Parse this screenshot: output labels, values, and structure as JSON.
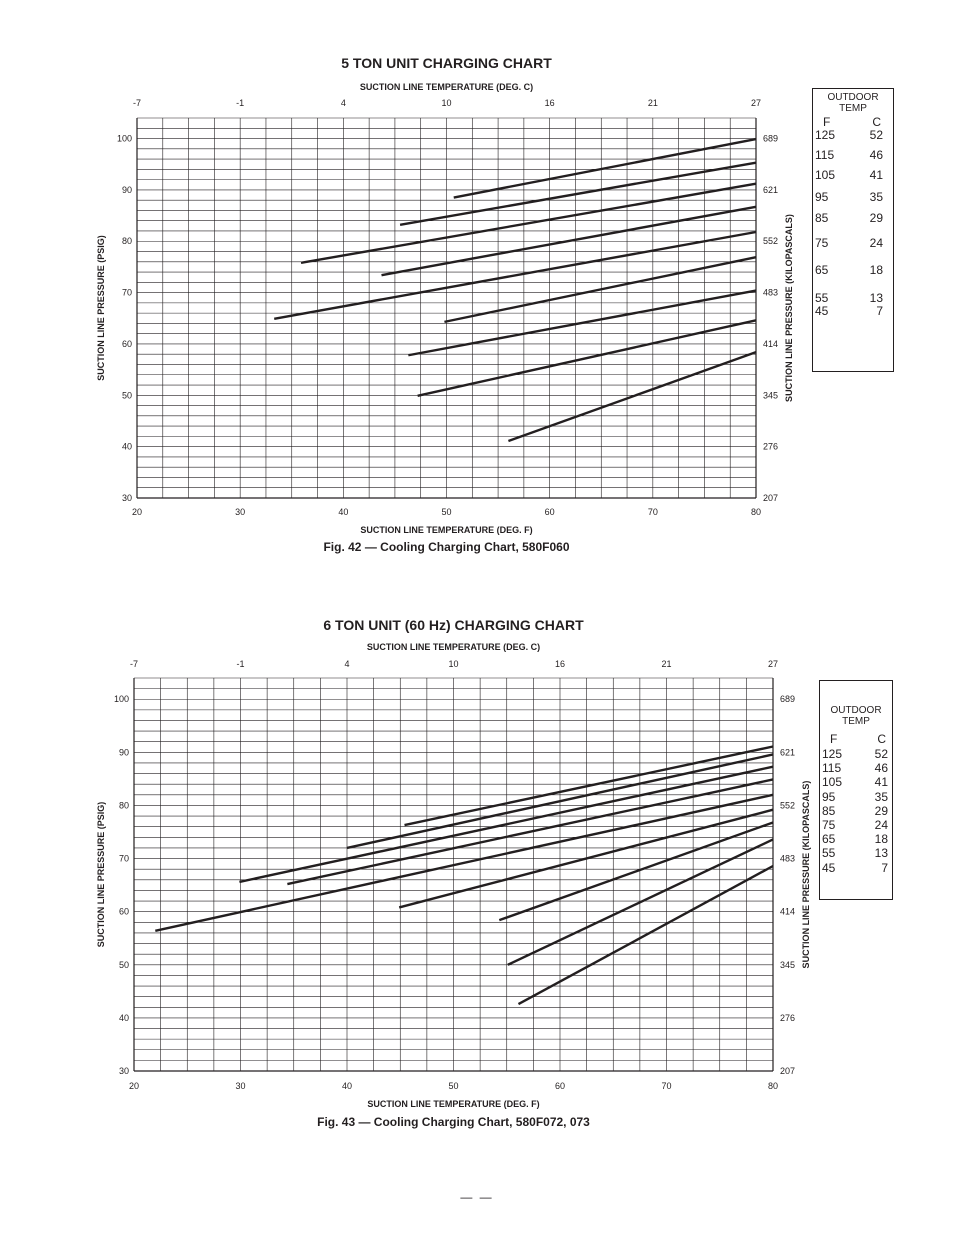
{
  "chart_data": [
    {
      "type": "line",
      "title": "5 TON UNIT CHARGING CHART",
      "caption": "Fig. 42 — Cooling Charging Chart, 580F060",
      "xlabel": "SUCTION LINE TEMPERATURE (DEG. F)",
      "x2label": "SUCTION LINE TEMPERATURE (DEG. C)",
      "ylabel": "SUCTION LINE PRESSURE (PSIG)",
      "y2label": "SUCTION LINE PRESSURE (KILOPASCALS)",
      "xlim": [
        20,
        80
      ],
      "ylim": [
        30,
        104
      ],
      "x_ticks": [
        20,
        30,
        40,
        50,
        60,
        70,
        80
      ],
      "x2_ticks": [
        {
          "label": "-7",
          "x": 20
        },
        {
          "label": "-1",
          "x": 30
        },
        {
          "label": "4",
          "x": 40
        },
        {
          "label": "10",
          "x": 50
        },
        {
          "label": "16",
          "x": 60
        },
        {
          "label": "21",
          "x": 70
        },
        {
          "label": "27",
          "x": 80
        }
      ],
      "y_ticks": [
        30,
        40,
        50,
        60,
        70,
        80,
        90,
        100
      ],
      "y2_ticks": [
        {
          "label": "207",
          "y": 30
        },
        {
          "label": "276",
          "y": 40
        },
        {
          "label": "345",
          "y": 50
        },
        {
          "label": "414",
          "y": 60
        },
        {
          "label": "483",
          "y": 70
        },
        {
          "label": "552",
          "y": 80
        },
        {
          "label": "621",
          "y": 90
        },
        {
          "label": "689",
          "y": 100
        }
      ],
      "grid": true,
      "legend": {
        "title_line1": "OUTDOOR",
        "title_line2": "TEMP",
        "col_f": "F",
        "col_c": "C",
        "rows": [
          {
            "f": "125",
            "c": "52",
            "y": 99.9
          },
          {
            "f": "115",
            "c": "46",
            "y": 95.3
          },
          {
            "f": "105",
            "c": "41",
            "y": 91.2
          },
          {
            "f": "95",
            "c": "35",
            "y": 86.7
          },
          {
            "f": "85",
            "c": "29",
            "y": 81.8
          },
          {
            "f": "75",
            "c": "24",
            "y": 76.9
          },
          {
            "f": "65",
            "c": "18",
            "y": 70.4
          },
          {
            "f": "55",
            "c": "13",
            "y": 64.6
          },
          {
            "f": "45",
            "c": "7",
            "y": 58.4
          }
        ]
      },
      "series": [
        {
          "name": "125",
          "x": [
            50.7,
            80
          ],
          "y": [
            88.5,
            99.9
          ]
        },
        {
          "name": "115",
          "x": [
            45.5,
            80
          ],
          "y": [
            83.2,
            95.3
          ]
        },
        {
          "name": "105",
          "x": [
            35.9,
            80
          ],
          "y": [
            75.8,
            91.2
          ]
        },
        {
          "name": "95",
          "x": [
            43.7,
            80
          ],
          "y": [
            73.4,
            86.7
          ]
        },
        {
          "name": "85",
          "x": [
            33.3,
            80
          ],
          "y": [
            64.9,
            81.8
          ]
        },
        {
          "name": "75",
          "x": [
            49.8,
            80
          ],
          "y": [
            64.3,
            76.9
          ]
        },
        {
          "name": "65",
          "x": [
            46.3,
            80
          ],
          "y": [
            57.8,
            70.4
          ]
        },
        {
          "name": "55",
          "x": [
            47.2,
            80
          ],
          "y": [
            49.9,
            64.6
          ]
        },
        {
          "name": "45",
          "x": [
            56.0,
            80
          ],
          "y": [
            41.1,
            58.4
          ]
        }
      ]
    },
    {
      "type": "line",
      "title": "6 TON UNIT (60 Hz) CHARGING CHART",
      "caption": "Fig. 43 — Cooling Charging Chart, 580F072, 073",
      "xlabel": "SUCTION LINE TEMPERATURE (DEG. F)",
      "x2label": "SUCTION LINE TEMPERATURE (DEG. C)",
      "ylabel": "SUCTION LINE PRESSURE (PSIG)",
      "y2label": "SUCTION LINE PRESSURE (KILOPASCALS)",
      "xlim": [
        20,
        80
      ],
      "ylim": [
        30,
        104
      ],
      "x_ticks": [
        20,
        30,
        40,
        50,
        60,
        70,
        80
      ],
      "x2_ticks": [
        {
          "label": "-7",
          "x": 20
        },
        {
          "label": "-1",
          "x": 30
        },
        {
          "label": "4",
          "x": 40
        },
        {
          "label": "10",
          "x": 50
        },
        {
          "label": "16",
          "x": 60
        },
        {
          "label": "21",
          "x": 70
        },
        {
          "label": "27",
          "x": 80
        }
      ],
      "y_ticks": [
        30,
        40,
        50,
        60,
        70,
        80,
        90,
        100
      ],
      "y2_ticks": [
        {
          "label": "207",
          "y": 30
        },
        {
          "label": "276",
          "y": 40
        },
        {
          "label": "345",
          "y": 50
        },
        {
          "label": "414",
          "y": 60
        },
        {
          "label": "483",
          "y": 70
        },
        {
          "label": "552",
          "y": 80
        },
        {
          "label": "621",
          "y": 90
        },
        {
          "label": "689",
          "y": 100
        }
      ],
      "grid": true,
      "legend": {
        "title_line1": "OUTDOOR",
        "title_line2": "TEMP",
        "col_f": "F",
        "col_c": "C",
        "rows": [
          {
            "f": "125",
            "c": "52",
            "y": 91.1
          },
          {
            "f": "115",
            "c": "46",
            "y": 89.6
          },
          {
            "f": "105",
            "c": "41",
            "y": 87.3
          },
          {
            "f": "95",
            "c": "35",
            "y": 84.9
          },
          {
            "f": "85",
            "c": "29",
            "y": 82.0
          },
          {
            "f": "75",
            "c": "24",
            "y": 79.2
          },
          {
            "f": "65",
            "c": "18",
            "y": 76.8
          },
          {
            "f": "55",
            "c": "13",
            "y": 73.6
          },
          {
            "f": "45",
            "c": "7",
            "y": 68.6
          }
        ]
      },
      "series": [
        {
          "name": "125",
          "x": [
            45.4,
            80
          ],
          "y": [
            76.3,
            91.1
          ]
        },
        {
          "name": "115",
          "x": [
            40.0,
            80
          ],
          "y": [
            72.0,
            89.6
          ]
        },
        {
          "name": "105",
          "x": [
            29.9,
            80
          ],
          "y": [
            65.6,
            87.3
          ]
        },
        {
          "name": "95",
          "x": [
            34.4,
            80
          ],
          "y": [
            65.2,
            84.9
          ]
        },
        {
          "name": "85",
          "x": [
            22.0,
            80
          ],
          "y": [
            56.4,
            82.0
          ]
        },
        {
          "name": "75",
          "x": [
            44.9,
            80
          ],
          "y": [
            60.8,
            79.2
          ]
        },
        {
          "name": "65",
          "x": [
            54.3,
            80
          ],
          "y": [
            58.4,
            76.8
          ]
        },
        {
          "name": "55",
          "x": [
            55.1,
            80
          ],
          "y": [
            50.0,
            73.6
          ]
        },
        {
          "name": "45",
          "x": [
            56.1,
            80
          ],
          "y": [
            42.6,
            68.6
          ]
        }
      ]
    }
  ],
  "footer": "— —"
}
